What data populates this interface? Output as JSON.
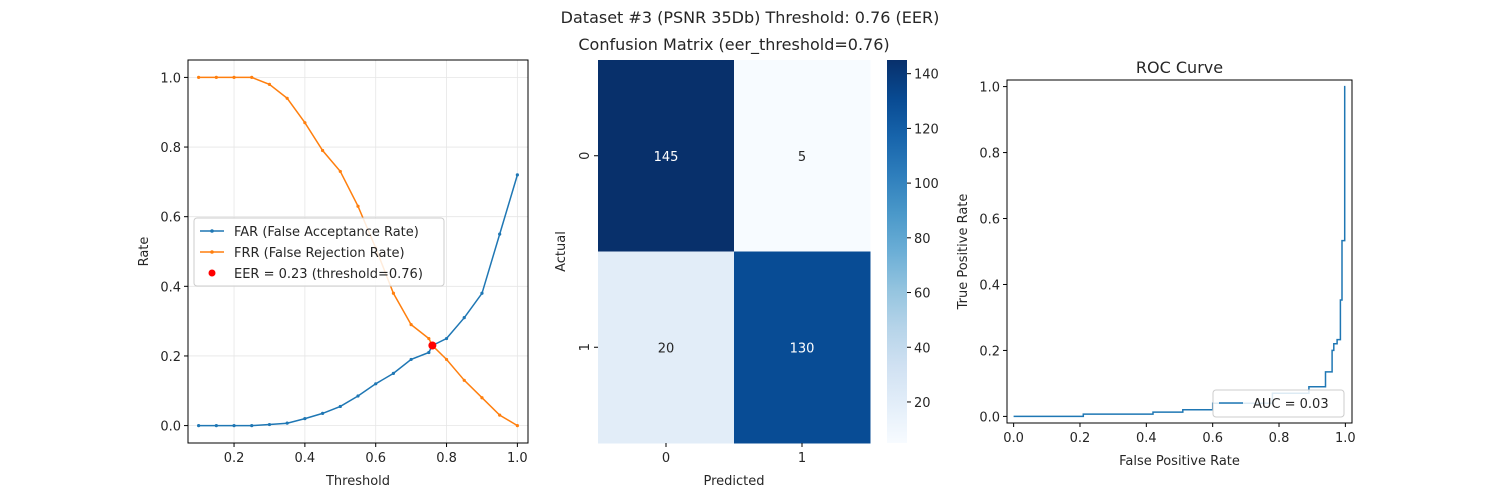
{
  "figure": {
    "suptitle": "Dataset #3 (PSNR 35Db)     Threshold: 0.76 (EER)"
  },
  "chart_data": [
    {
      "type": "line",
      "title": "",
      "xlabel": "Threshold",
      "ylabel": "Rate",
      "xlim": [
        0.07,
        1.03
      ],
      "ylim": [
        -0.05,
        1.05
      ],
      "xticks": [
        "0.2",
        "0.4",
        "0.6",
        "0.8",
        "1.0"
      ],
      "yticks": [
        "0.0",
        "0.2",
        "0.4",
        "0.6",
        "0.8",
        "1.0"
      ],
      "grid": true,
      "legend_position": "center-left",
      "x": [
        0.1,
        0.15,
        0.2,
        0.25,
        0.3,
        0.35,
        0.4,
        0.45,
        0.5,
        0.55,
        0.6,
        0.65,
        0.7,
        0.75,
        0.76,
        0.8,
        0.85,
        0.9,
        0.95,
        1.0
      ],
      "series": [
        {
          "name": "FAR (False Acceptance Rate)",
          "color": "#1f77b4",
          "values": [
            0.0,
            0.0,
            0.0,
            0.0,
            0.003,
            0.007,
            0.02,
            0.035,
            0.055,
            0.085,
            0.12,
            0.15,
            0.19,
            0.21,
            0.23,
            0.25,
            0.31,
            0.38,
            0.55,
            0.72
          ]
        },
        {
          "name": "FRR (False Rejection Rate)",
          "color": "#ff7f0e",
          "values": [
            1.0,
            1.0,
            1.0,
            1.0,
            0.98,
            0.94,
            0.87,
            0.79,
            0.73,
            0.63,
            0.51,
            0.38,
            0.29,
            0.25,
            0.23,
            0.19,
            0.13,
            0.08,
            0.03,
            0.0
          ]
        }
      ],
      "eer_point": {
        "label": "EER = 0.23 (threshold=0.76)",
        "x": 0.76,
        "y": 0.23,
        "color": "#ff0000"
      }
    },
    {
      "type": "heatmap",
      "title": "Confusion Matrix (eer_threshold=0.76)",
      "xlabel": "Predicted",
      "ylabel": "Actual",
      "x_categories": [
        "0",
        "1"
      ],
      "y_categories": [
        "0",
        "1"
      ],
      "values": [
        [
          145,
          5
        ],
        [
          20,
          130
        ]
      ],
      "colormap": "Blues",
      "colorbar_range": [
        5,
        145
      ],
      "colorbar_ticks": [
        "20",
        "40",
        "60",
        "80",
        "100",
        "120",
        "140"
      ]
    },
    {
      "type": "line",
      "title": "ROC Curve",
      "xlabel": "False Positive Rate",
      "ylabel": "True Positive Rate",
      "xlim": [
        -0.02,
        1.02
      ],
      "ylim": [
        -0.02,
        1.02
      ],
      "xticks": [
        "0.0",
        "0.2",
        "0.4",
        "0.6",
        "0.8",
        "1.0"
      ],
      "yticks": [
        "0.0",
        "0.2",
        "0.4",
        "0.6",
        "0.8",
        "1.0"
      ],
      "grid": false,
      "legend_position": "lower-right",
      "series": [
        {
          "name": "AUC = 0.03",
          "color": "#1f77b4",
          "x": [
            0.0,
            0.21,
            0.21,
            0.42,
            0.42,
            0.51,
            0.51,
            0.6,
            0.6,
            0.78,
            0.78,
            0.89,
            0.89,
            0.94,
            0.94,
            0.96,
            0.96,
            0.965,
            0.965,
            0.975,
            0.975,
            0.985,
            0.985,
            0.99,
            0.99,
            0.998,
            0.998,
            1.0
          ],
          "y": [
            0.0,
            0.0,
            0.007,
            0.007,
            0.013,
            0.013,
            0.02,
            0.02,
            0.04,
            0.04,
            0.07,
            0.07,
            0.09,
            0.09,
            0.135,
            0.135,
            0.2,
            0.2,
            0.22,
            0.22,
            0.233,
            0.233,
            0.353,
            0.353,
            0.533,
            0.533,
            1.0,
            1.0
          ]
        }
      ]
    }
  ]
}
